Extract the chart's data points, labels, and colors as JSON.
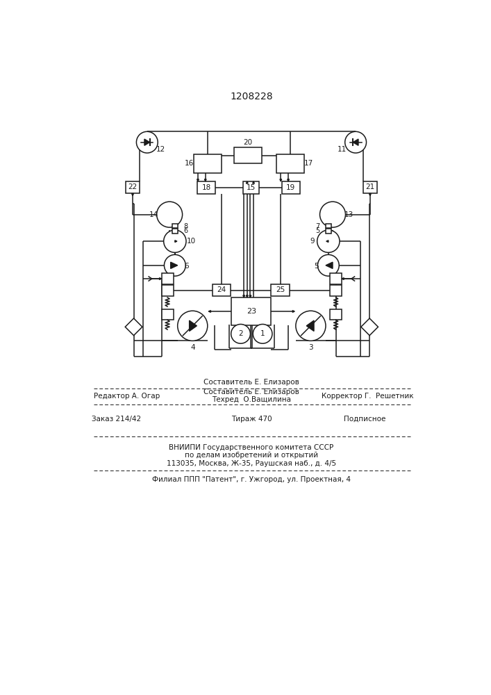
{
  "title": "1208228",
  "bg": "#ffffff",
  "lc": "#1a1a1a",
  "lw": 1.1,
  "footer": {
    "sestavitel": "Составитель Е. Елизаров",
    "redaktor": "Редактор А. Огар",
    "tehred": "Техред  О.Ващилина",
    "korrektor": "Корректор Г.  Решетник",
    "zakaz": "Заказ 214/42",
    "tirazh": "Тираж 470",
    "podpisnoe": "Подписное",
    "vniipи": "ВНИИПИ Государственного комитета СССР",
    "dela": "по делам изобретений и открытий",
    "addr": "113035, Москва, Ж-35, Раушская наб., д. 4/5",
    "filial": "Филиал ППП \"Патент\", г. Ужгород, ул. Проектная, 4"
  }
}
